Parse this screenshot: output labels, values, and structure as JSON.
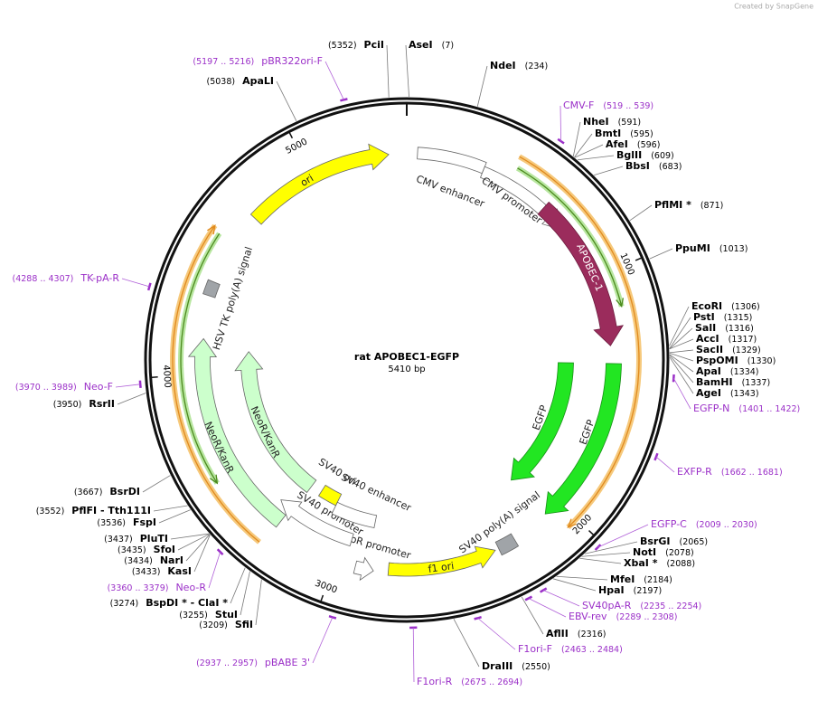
{
  "watermark": "Created by SnapGene",
  "title": "rat APOBEC1-EGFP",
  "length": "5410 bp",
  "ticks": [
    "1000",
    "2000",
    "3000",
    "4000",
    "5000"
  ],
  "sites": [
    {
      "name": "PciI",
      "position": "(5352)"
    },
    {
      "name": "AseI",
      "position": "(7)"
    },
    {
      "name": "NdeI",
      "position": "(234)"
    },
    {
      "name": "ApaLI",
      "position": "(5038)"
    },
    {
      "name": "NheI",
      "position": "(591)"
    },
    {
      "name": "BmtI",
      "position": "(595)"
    },
    {
      "name": "AfeI",
      "position": "(596)"
    },
    {
      "name": "BglII",
      "position": "(609)"
    },
    {
      "name": "BbsI",
      "position": "(683)"
    },
    {
      "name": "PflMI *",
      "position": "(871)"
    },
    {
      "name": "PpuMI",
      "position": "(1013)"
    },
    {
      "name": "EcoRI",
      "position": "(1306)"
    },
    {
      "name": "PstI",
      "position": "(1315)"
    },
    {
      "name": "SalI",
      "position": "(1316)"
    },
    {
      "name": "AccI",
      "position": "(1317)"
    },
    {
      "name": "SacII",
      "position": "(1329)"
    },
    {
      "name": "PspOMI",
      "position": "(1330)"
    },
    {
      "name": "ApaI",
      "position": "(1334)"
    },
    {
      "name": "BamHI",
      "position": "(1337)"
    },
    {
      "name": "AgeI",
      "position": "(1343)"
    },
    {
      "name": "BsrGI",
      "position": "(2065)"
    },
    {
      "name": "NotI",
      "position": "(2078)"
    },
    {
      "name": "XbaI *",
      "position": "(2088)"
    },
    {
      "name": "MfeI",
      "position": "(2184)"
    },
    {
      "name": "HpaI",
      "position": "(2197)"
    },
    {
      "name": "AflII",
      "position": "(2316)"
    },
    {
      "name": "DraIII",
      "position": "(2550)"
    },
    {
      "name": "SfiI",
      "position": "(3209)"
    },
    {
      "name": "StuI",
      "position": "(3255)"
    },
    {
      "name": "BspDI * - ClaI *",
      "position": "(3274)"
    },
    {
      "name": "KasI",
      "position": "(3433)"
    },
    {
      "name": "NarI",
      "position": "(3434)"
    },
    {
      "name": "SfoI",
      "position": "(3435)"
    },
    {
      "name": "PluTI",
      "position": "(3437)"
    },
    {
      "name": "FspI",
      "position": "(3536)"
    },
    {
      "name": "PflFI - Tth111I",
      "position": "(3552)"
    },
    {
      "name": "BsrDI",
      "position": "(3667)"
    },
    {
      "name": "RsrII",
      "position": "(3950)"
    }
  ],
  "primers": [
    {
      "name": "pBR322ori-F",
      "range": "(5197 .. 5216)"
    },
    {
      "name": "CMV-F",
      "range": "(519 .. 539)"
    },
    {
      "name": "EGFP-N",
      "range": "(1401 .. 1422)"
    },
    {
      "name": "EXFP-R",
      "range": "(1662 .. 1681)"
    },
    {
      "name": "EGFP-C",
      "range": "(2009 .. 2030)"
    },
    {
      "name": "SV40pA-R",
      "range": "(2235 .. 2254)"
    },
    {
      "name": "EBV-rev",
      "range": "(2289 .. 2308)"
    },
    {
      "name": "F1ori-F",
      "range": "(2463 .. 2484)"
    },
    {
      "name": "F1ori-R",
      "range": "(2675 .. 2694)"
    },
    {
      "name": "pBABE 3'",
      "range": "(2937 .. 2957)"
    },
    {
      "name": "Neo-R",
      "range": "(3360 .. 3379)"
    },
    {
      "name": "Neo-F",
      "range": "(3970 .. 3989)"
    },
    {
      "name": "TK-pA-R",
      "range": "(4288 .. 4307)"
    }
  ],
  "features": [
    {
      "label": "CMV enhancer"
    },
    {
      "label": "CMV promoter"
    },
    {
      "label": "APOBEC-1"
    },
    {
      "label": "EGFP"
    },
    {
      "label": "EGFP"
    },
    {
      "label": "SV40 poly(A) signal"
    },
    {
      "label": "f1 ori"
    },
    {
      "label": "AmpR promoter"
    },
    {
      "label": "SV40 promoter"
    },
    {
      "label": "SV40 ori"
    },
    {
      "label": "SV40 enhancer"
    },
    {
      "label": "NeoR/KanR"
    },
    {
      "label": "NeoR/KanR"
    },
    {
      "label": "HSV TK poly(A) signal"
    },
    {
      "label": "ori"
    }
  ]
}
